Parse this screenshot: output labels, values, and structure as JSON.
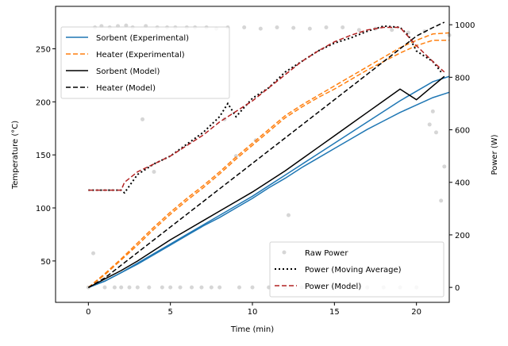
{
  "chart_data": {
    "type": "line",
    "xlabel": "Time (min)",
    "ylabel": "Temperature (°C)",
    "y2label": "Power (W)",
    "xlim": [
      -2,
      22
    ],
    "ylim": [
      11,
      290
    ],
    "y2lim": [
      -57,
      1070
    ],
    "xticks": [
      0,
      5,
      10,
      15,
      20
    ],
    "yticks": [
      50,
      100,
      150,
      200,
      250
    ],
    "y2ticks": [
      0,
      200,
      400,
      600,
      800,
      1000
    ],
    "legend_left": {
      "placement": "upper-left",
      "entries": [
        "Sorbent (Experimental)",
        "Heater (Experimental)",
        "Sorbent (Model)",
        "Heater (Model)"
      ]
    },
    "legend_right": {
      "placement": "lower-right",
      "entries": [
        "Raw Power",
        "Power (Moving Average)",
        "Power (Model)"
      ]
    },
    "series": [
      {
        "name": "Sorbent (Experimental)",
        "axis": "left",
        "color": "#1f77b4",
        "style": "solid",
        "x": [
          0,
          1,
          2,
          3,
          4,
          5,
          6,
          7,
          8,
          9,
          10,
          11,
          12,
          13,
          14,
          15,
          16,
          17,
          18,
          19,
          20,
          21,
          22
        ],
        "y": [
          25,
          31,
          39,
          48,
          57,
          66,
          75,
          84,
          93,
          102,
          111,
          121,
          131,
          141,
          151,
          161,
          171,
          181,
          191,
          201,
          210,
          219,
          224
        ]
      },
      {
        "name": "Sorbent (Experimental)",
        "axis": "left",
        "color": "#1f77b4",
        "style": "solid",
        "x": [
          0,
          1,
          2,
          3,
          4,
          5,
          6,
          7,
          8,
          9,
          10,
          11,
          12,
          13,
          14,
          15,
          16,
          17,
          18,
          19,
          20,
          21,
          22
        ],
        "y": [
          25,
          31,
          39,
          47,
          56,
          65,
          74,
          83,
          91,
          100,
          109,
          119,
          128,
          138,
          147,
          156,
          165,
          174,
          182,
          190,
          197,
          204,
          209
        ]
      },
      {
        "name": "Heater (Experimental)",
        "axis": "left",
        "color": "#ff7f0e",
        "style": "dashed",
        "x": [
          0,
          1,
          2,
          3,
          4,
          5,
          6,
          7,
          8,
          9,
          10,
          11,
          12,
          13,
          14,
          15,
          16,
          17,
          18,
          19,
          20,
          21,
          22
        ],
        "y": [
          25,
          38,
          52,
          67,
          82,
          96,
          109,
          121,
          134,
          148,
          161,
          174,
          187,
          197,
          206,
          215,
          224,
          233,
          242,
          251,
          258,
          264,
          265
        ]
      },
      {
        "name": "Heater (Experimental)",
        "axis": "left",
        "color": "#ff7f0e",
        "style": "dashed",
        "x": [
          0,
          1,
          2,
          3,
          4,
          5,
          6,
          7,
          8,
          9,
          10,
          11,
          12,
          13,
          14,
          15,
          16,
          17,
          18,
          19,
          20,
          21,
          22
        ],
        "y": [
          25,
          37,
          51,
          65,
          80,
          94,
          107,
          119,
          132,
          146,
          159,
          172,
          185,
          195,
          204,
          212,
          221,
          230,
          238,
          246,
          253,
          258,
          258
        ]
      },
      {
        "name": "Sorbent (Model)",
        "axis": "left",
        "color": "#000000",
        "style": "solid",
        "x": [
          0,
          1,
          2,
          3,
          4,
          5,
          6,
          7,
          8,
          9,
          10,
          11,
          12,
          13,
          14,
          15,
          16,
          17,
          18,
          19,
          20,
          21,
          21.7
        ],
        "y": [
          25,
          33,
          41,
          50,
          60,
          70,
          79,
          88,
          97,
          106,
          115,
          125,
          135,
          146,
          157,
          168,
          179,
          190,
          201,
          212,
          202,
          215,
          224
        ]
      },
      {
        "name": "Heater (Model)",
        "axis": "left",
        "color": "#000000",
        "style": "dashed",
        "x": [
          0,
          1,
          2,
          3,
          4,
          5,
          6,
          7,
          8,
          9,
          10,
          11,
          12,
          13,
          14,
          15,
          16,
          17,
          18,
          19,
          20,
          21,
          21.7
        ],
        "y": [
          25,
          34,
          46,
          58,
          70,
          82,
          94,
          106,
          118,
          130,
          142,
          154,
          166,
          178,
          190,
          202,
          214,
          226,
          238,
          250,
          262,
          270,
          275
        ]
      },
      {
        "name": "Power (Moving Average)",
        "axis": "right",
        "color": "#000000",
        "style": "dotted",
        "x": [
          0,
          2,
          2.2,
          3,
          4,
          5,
          6,
          7,
          8,
          8.5,
          9,
          10,
          11,
          12,
          13,
          14,
          15,
          16,
          17,
          18,
          19,
          19.5,
          20,
          21,
          21.5
        ],
        "y": [
          370,
          370,
          360,
          430,
          470,
          500,
          545,
          590,
          650,
          700,
          650,
          720,
          760,
          820,
          860,
          900,
          930,
          950,
          975,
          995,
          990,
          960,
          900,
          860,
          820
        ]
      },
      {
        "name": "Power (Model)",
        "axis": "right",
        "color": "#b22222",
        "style": "dashed",
        "x": [
          0,
          2,
          2.2,
          3,
          4,
          5,
          6,
          7,
          8,
          9,
          10,
          11,
          12,
          13,
          14,
          15,
          16,
          17,
          18,
          19,
          20,
          21,
          21.7
        ],
        "y": [
          370,
          370,
          400,
          440,
          470,
          500,
          540,
          580,
          630,
          670,
          710,
          760,
          810,
          860,
          900,
          935,
          960,
          980,
          990,
          990,
          920,
          860,
          820
        ]
      }
    ],
    "scatter": {
      "name": "Raw Power",
      "axis": "right",
      "color": "#bbbbbb",
      "points": [
        [
          0,
          0
        ],
        [
          0.3,
          130
        ],
        [
          0.4,
          990
        ],
        [
          0.8,
          995
        ],
        [
          1,
          0
        ],
        [
          1.3,
          990
        ],
        [
          1.6,
          0
        ],
        [
          1.8,
          995
        ],
        [
          2,
          0
        ],
        [
          2.3,
          997
        ],
        [
          2.5,
          0
        ],
        [
          2.7,
          990
        ],
        [
          3,
          0
        ],
        [
          3.3,
          640
        ],
        [
          3.5,
          995
        ],
        [
          3.7,
          0
        ],
        [
          4,
          440
        ],
        [
          4.2,
          990
        ],
        [
          4.5,
          0
        ],
        [
          4.8,
          990
        ],
        [
          5,
          0
        ],
        [
          5.3,
          990
        ],
        [
          5.6,
          0
        ],
        [
          6,
          990
        ],
        [
          6.3,
          0
        ],
        [
          6.5,
          990
        ],
        [
          6.9,
          0
        ],
        [
          7.2,
          990
        ],
        [
          7.5,
          0
        ],
        [
          7.8,
          985
        ],
        [
          8,
          0
        ],
        [
          8.3,
          640
        ],
        [
          8.5,
          990
        ],
        [
          9,
          500
        ],
        [
          9.2,
          0
        ],
        [
          9.5,
          990
        ],
        [
          10,
          0
        ],
        [
          10.2,
          560
        ],
        [
          10.5,
          985
        ],
        [
          11,
          0
        ],
        [
          11.5,
          990
        ],
        [
          12,
          0
        ],
        [
          12.2,
          275
        ],
        [
          12.5,
          988
        ],
        [
          13,
          0
        ],
        [
          13.5,
          985
        ],
        [
          14,
          0
        ],
        [
          14.5,
          990
        ],
        [
          15,
          0
        ],
        [
          15.5,
          990
        ],
        [
          16,
          0
        ],
        [
          16.5,
          980
        ],
        [
          17,
          0
        ],
        [
          17.5,
          985
        ],
        [
          18,
          0
        ],
        [
          18.5,
          980
        ],
        [
          19,
          0
        ],
        [
          19.5,
          970
        ],
        [
          20,
          0
        ],
        [
          20.5,
          975
        ],
        [
          20.8,
          620
        ],
        [
          21,
          670
        ],
        [
          21.2,
          590
        ],
        [
          21.5,
          330
        ],
        [
          21.7,
          460
        ],
        [
          22,
          960
        ]
      ]
    }
  }
}
